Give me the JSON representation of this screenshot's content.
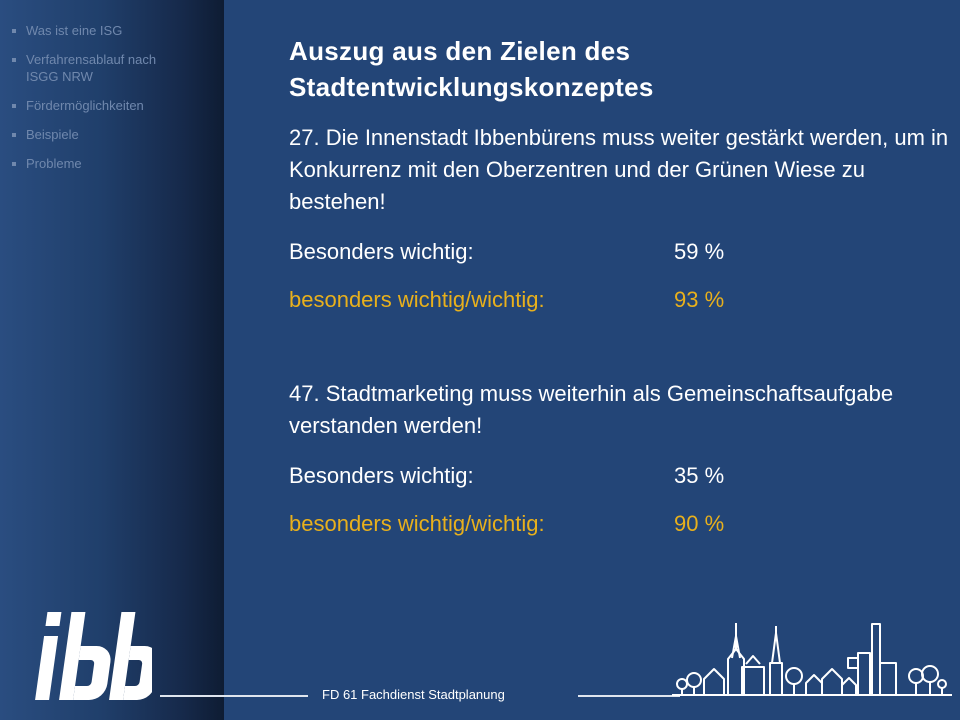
{
  "sidebar": {
    "items": [
      {
        "label": "Was ist eine ISG"
      },
      {
        "label": "Verfahrensablauf nach ISGG NRW"
      },
      {
        "label": "Fördermöglichkeiten"
      },
      {
        "label": "Beispiele"
      },
      {
        "label": "Probleme"
      }
    ]
  },
  "main": {
    "title": "Auszug aus den Zielen des Stadtentwicklungskonzeptes",
    "points": [
      {
        "text": "27. Die Innenstadt Ibbenbürens muss weiter gestärkt werden, um in Konkurrenz mit den Oberzentren und der Grünen Wiese zu bestehen!",
        "stats": [
          {
            "label": "Besonders wichtig:",
            "value": "59 %"
          },
          {
            "label": "besonders wichtig/wichtig:",
            "value": "93 %"
          }
        ]
      },
      {
        "text": "47. Stadtmarketing muss weiterhin als Gemeinschaftsaufgabe verstanden werden!",
        "stats": [
          {
            "label": "Besonders wichtig:",
            "value": "35 %"
          },
          {
            "label": "besonders wichtig/wichtig:",
            "value": "90 %"
          }
        ]
      }
    ]
  },
  "footer": {
    "text": "FD 61 Fachdienst  Stadtplanung",
    "logo_text": "ibb"
  },
  "colors": {
    "background": "#234577",
    "highlight": "#e8b01c",
    "nav_text": "#7088ad"
  },
  "icons": [
    "bullet-icon",
    "ibb-logo",
    "town-skyline-icon"
  ]
}
